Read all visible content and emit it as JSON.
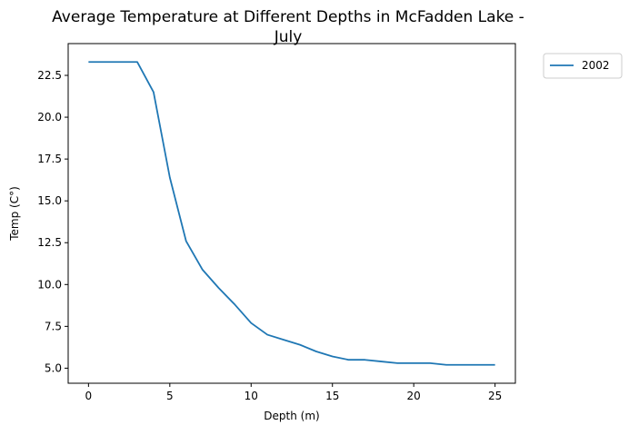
{
  "chart_data": {
    "type": "line",
    "title": "Average Temperature at Different Depths in McFadden Lake -\nJuly",
    "title_lines": [
      "Average Temperature at Different Depths in McFadden Lake -",
      "July"
    ],
    "xlabel": "Depth (m)",
    "ylabel": "Temp (C°)",
    "xlim": [
      -1.25,
      26.25
    ],
    "ylim": [
      4.1,
      24.4
    ],
    "xticks": [
      0,
      5,
      10,
      15,
      20,
      25
    ],
    "yticks": [
      5.0,
      7.5,
      10.0,
      12.5,
      15.0,
      17.5,
      20.0,
      22.5
    ],
    "xtick_labels": [
      "0",
      "5",
      "10",
      "15",
      "20",
      "25"
    ],
    "ytick_labels": [
      "5.0",
      "7.5",
      "10.0",
      "12.5",
      "15.0",
      "17.5",
      "20.0",
      "22.5"
    ],
    "grid": false,
    "legend_position": "outside-top-right",
    "series": [
      {
        "name": "2002",
        "color": "#1f77b4",
        "x": [
          0,
          1,
          2,
          3,
          4,
          5,
          6,
          7,
          8,
          9,
          10,
          11,
          12,
          13,
          14,
          15,
          16,
          17,
          18,
          19,
          20,
          21,
          22,
          23,
          24,
          25
        ],
        "y": [
          23.3,
          23.3,
          23.3,
          23.3,
          21.5,
          16.4,
          12.6,
          10.9,
          9.8,
          8.8,
          7.7,
          7.0,
          6.7,
          6.4,
          6.0,
          5.7,
          5.5,
          5.5,
          5.4,
          5.3,
          5.3,
          5.3,
          5.2,
          5.2,
          5.2,
          5.2
        ]
      }
    ]
  }
}
